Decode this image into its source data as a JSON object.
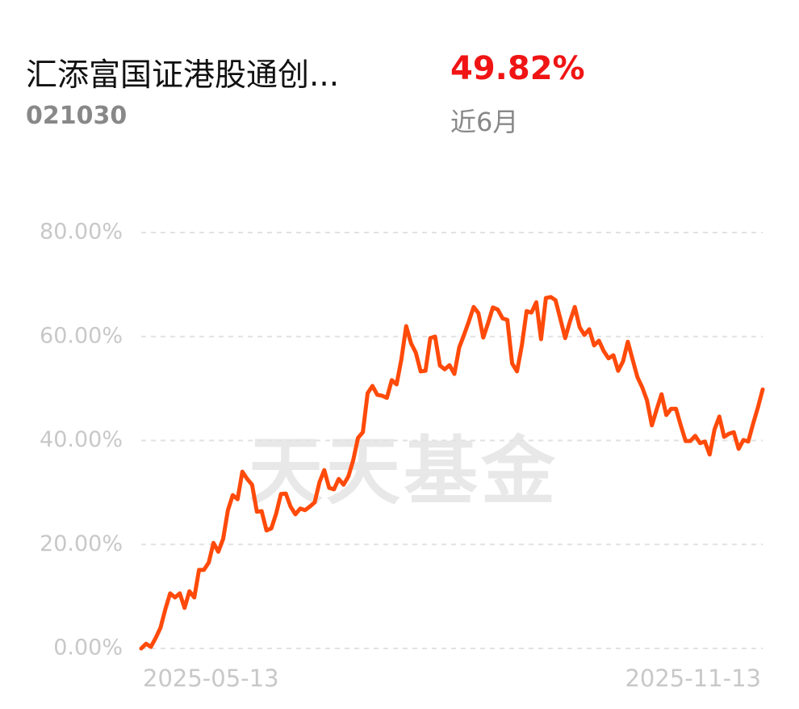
{
  "header": {
    "title": "汇添富国证港股通创...",
    "code": "021030",
    "return": "49.82%",
    "period": "近6月"
  },
  "chart_data": {
    "type": "line",
    "watermark": "天天基金",
    "categories": [
      "2025-05-13",
      null,
      null,
      null,
      null,
      null,
      null,
      null,
      null,
      null,
      null,
      null,
      null,
      null,
      null,
      null,
      null,
      null,
      null,
      null,
      null,
      null,
      null,
      null,
      null,
      null,
      null,
      null,
      null,
      null,
      null,
      null,
      null,
      null,
      null,
      null,
      null,
      null,
      null,
      null,
      null,
      null,
      null,
      null,
      null,
      null,
      null,
      null,
      null,
      null,
      null,
      null,
      null,
      null,
      null,
      null,
      null,
      null,
      null,
      null,
      null,
      null,
      null,
      null,
      null,
      null,
      null,
      null,
      null,
      null,
      null,
      null,
      null,
      null,
      null,
      null,
      null,
      null,
      null,
      null,
      null,
      null,
      null,
      null,
      null,
      null,
      null,
      null,
      null,
      null,
      null,
      null,
      null,
      null,
      null,
      null,
      null,
      null,
      null,
      null,
      null,
      null,
      null,
      null,
      null,
      null,
      null,
      null,
      null,
      null,
      null,
      null,
      null,
      null,
      null,
      null,
      null,
      null,
      null,
      null,
      null,
      null,
      null,
      null,
      null,
      null,
      null,
      null,
      null,
      "2025-11-13"
    ],
    "series": [
      {
        "color": "#ff4a0a",
        "values": [
          0,
          0.9,
          0.3,
          2,
          4,
          7.5,
          10.6,
          9.8,
          10.6,
          7.8,
          11,
          9.8,
          15.1,
          15.1,
          16.5,
          20.3,
          18.6,
          21.1,
          26.6,
          29.5,
          28.7,
          34,
          32.6,
          31.5,
          26.3,
          26.4,
          22.7,
          23.1,
          25.9,
          29.7,
          29.8,
          27.3,
          25.8,
          26.9,
          26.6,
          27.3,
          28.1,
          32,
          34.3,
          30.9,
          30.6,
          32.6,
          31.5,
          33.1,
          36.2,
          40.5,
          41.6,
          49.1,
          50.5,
          48.8,
          48.6,
          48.2,
          51.6,
          50.8,
          55.6,
          62,
          58.7,
          56.9,
          53.3,
          53.4,
          59.7,
          60,
          54.4,
          53.7,
          54.5,
          52.8,
          57.9,
          60.3,
          62.9,
          65.7,
          64.5,
          59.8,
          62.6,
          65.6,
          65.2,
          63.5,
          63.2,
          54.8,
          53.3,
          58.3,
          64.9,
          64.6,
          66.6,
          59.5,
          67.4,
          67.6,
          67,
          63.4,
          59.7,
          62.9,
          65.7,
          61.8,
          60.3,
          61.4,
          58.3,
          59.2,
          57.2,
          55.8,
          56.4,
          53.4,
          55.2,
          59,
          55.6,
          52.2,
          50.2,
          47.7,
          42.9,
          46,
          48.9,
          44.9,
          46.1,
          46.1,
          42.9,
          39.9,
          39.9,
          40.9,
          39.5,
          39.8,
          37.3,
          42.1,
          44.6,
          40.7,
          41.3,
          41.6,
          38.4,
          40.1,
          39.8,
          43.2,
          46.3,
          49.82
        ]
      }
    ],
    "ylim": [
      0,
      80
    ],
    "yticks": [
      {
        "value": 0,
        "label": "0.00%"
      },
      {
        "value": 20,
        "label": "20.00%"
      },
      {
        "value": 40,
        "label": "40.00%"
      },
      {
        "value": 60,
        "label": "60.00%"
      },
      {
        "value": 80,
        "label": "80.00%"
      }
    ],
    "grid": true
  }
}
